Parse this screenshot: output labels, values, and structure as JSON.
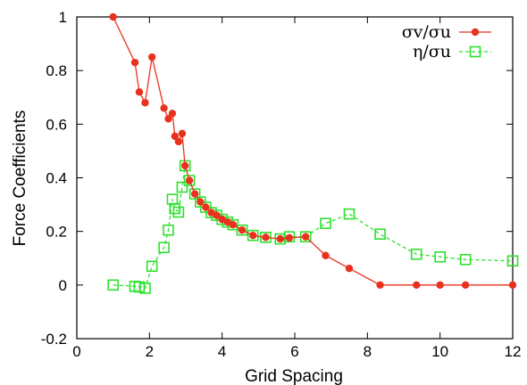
{
  "chart_data": {
    "type": "line",
    "xlabel": "Grid Spacing",
    "ylabel": "Force Coefficients",
    "xlim": [
      0,
      12
    ],
    "ylim": [
      -0.2,
      1
    ],
    "x_ticks": [
      "0",
      "2",
      "4",
      "6",
      "8",
      "10",
      "12"
    ],
    "y_ticks": [
      "-0.2",
      "0",
      "0.2",
      "0.4",
      "0.6",
      "0.8",
      "1"
    ],
    "x_tick_values": [
      0,
      2,
      4,
      6,
      8,
      10,
      12
    ],
    "y_tick_values": [
      -0.2,
      0,
      0.2,
      0.4,
      0.6,
      0.8,
      1
    ],
    "grid": false,
    "legend_position": "top-right",
    "series": [
      {
        "name": "σv/σu",
        "color": "#e8321e",
        "line_style": "solid",
        "marker": "filled-circle",
        "points": [
          [
            1.0,
            1.0
          ],
          [
            1.6,
            0.83
          ],
          [
            1.72,
            0.72
          ],
          [
            1.88,
            0.68
          ],
          [
            2.07,
            0.85
          ],
          [
            2.4,
            0.66
          ],
          [
            2.52,
            0.62
          ],
          [
            2.63,
            0.64
          ],
          [
            2.7,
            0.555
          ],
          [
            2.8,
            0.535
          ],
          [
            2.9,
            0.565
          ],
          [
            2.98,
            0.445
          ],
          [
            3.1,
            0.39
          ],
          [
            3.25,
            0.34
          ],
          [
            3.4,
            0.31
          ],
          [
            3.55,
            0.29
          ],
          [
            3.7,
            0.27
          ],
          [
            3.85,
            0.26
          ],
          [
            4.0,
            0.245
          ],
          [
            4.15,
            0.235
          ],
          [
            4.3,
            0.225
          ],
          [
            4.55,
            0.205
          ],
          [
            4.85,
            0.185
          ],
          [
            5.2,
            0.178
          ],
          [
            5.6,
            0.172
          ],
          [
            5.85,
            0.176
          ],
          [
            6.3,
            0.18
          ],
          [
            6.85,
            0.11
          ],
          [
            7.5,
            0.062
          ],
          [
            8.35,
            0.0
          ],
          [
            9.35,
            0.0
          ],
          [
            10.0,
            0.0
          ],
          [
            10.7,
            0.0
          ],
          [
            12.0,
            0.0
          ]
        ]
      },
      {
        "name": "η/σu",
        "color": "#2ee02e",
        "line_style": "dashed",
        "marker": "open-square",
        "points": [
          [
            1.0,
            0.0
          ],
          [
            1.6,
            -0.005
          ],
          [
            1.72,
            -0.007
          ],
          [
            1.88,
            -0.012
          ],
          [
            2.07,
            0.07
          ],
          [
            2.4,
            0.14
          ],
          [
            2.52,
            0.205
          ],
          [
            2.63,
            0.32
          ],
          [
            2.7,
            0.285
          ],
          [
            2.8,
            0.272
          ],
          [
            2.9,
            0.365
          ],
          [
            2.98,
            0.445
          ],
          [
            3.1,
            0.39
          ],
          [
            3.25,
            0.34
          ],
          [
            3.4,
            0.31
          ],
          [
            3.55,
            0.29
          ],
          [
            3.7,
            0.27
          ],
          [
            3.85,
            0.26
          ],
          [
            4.0,
            0.245
          ],
          [
            4.15,
            0.235
          ],
          [
            4.3,
            0.225
          ],
          [
            4.55,
            0.205
          ],
          [
            4.85,
            0.185
          ],
          [
            5.2,
            0.178
          ],
          [
            5.6,
            0.172
          ],
          [
            5.85,
            0.18
          ],
          [
            6.3,
            0.18
          ],
          [
            6.85,
            0.23
          ],
          [
            7.5,
            0.265
          ],
          [
            8.35,
            0.19
          ],
          [
            9.35,
            0.115
          ],
          [
            10.0,
            0.105
          ],
          [
            10.7,
            0.095
          ],
          [
            12.0,
            0.09
          ]
        ]
      }
    ]
  }
}
